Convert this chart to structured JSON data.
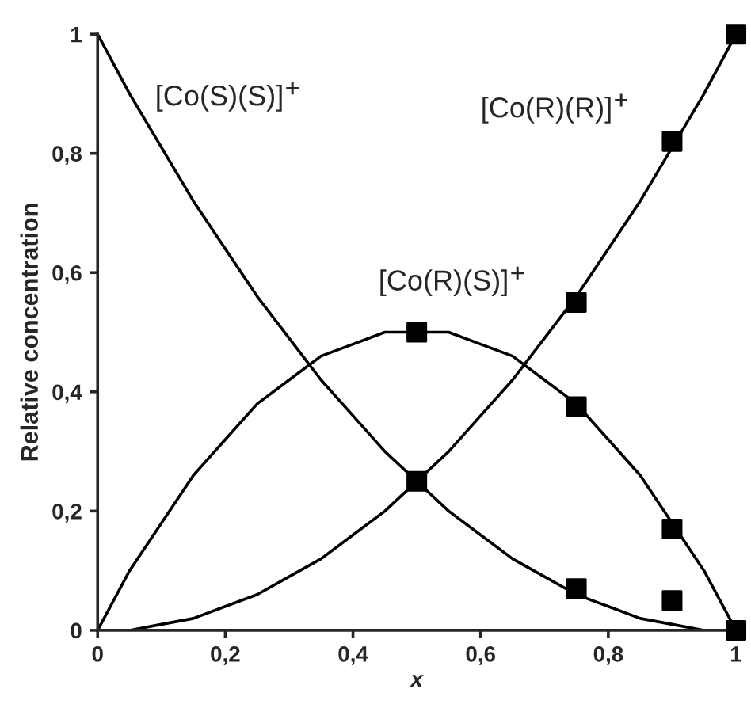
{
  "chart_data": {
    "type": "line",
    "xlabel": "x",
    "ylabel": "Relative concentration",
    "xlim": [
      0,
      1
    ],
    "ylim": [
      0,
      1
    ],
    "xticks": [
      0,
      {
        "value": 0.2,
        "label": "0,2"
      },
      {
        "value": 0.4,
        "label": "0,4"
      },
      {
        "value": 0.6,
        "label": "0,6"
      },
      {
        "value": 0.8,
        "label": "0,8"
      },
      1
    ],
    "yticks": [
      0,
      {
        "value": 0.2,
        "label": "0,2"
      },
      {
        "value": 0.4,
        "label": "0,4"
      },
      {
        "value": 0.6,
        "label": "0,6"
      },
      {
        "value": 0.8,
        "label": "0,8"
      },
      1
    ],
    "grid": false,
    "legend": false,
    "marker": "none",
    "line_style": "solid",
    "series": [
      {
        "name": "[Co(S)(S)]$^{+}$",
        "color": "#000000",
        "x": [
          0,
          0.05,
          0.1,
          0.15,
          0.2,
          0.25,
          0.3,
          0.35,
          0.4,
          0.45,
          0.5,
          0.55,
          0.6,
          0.65,
          0.7,
          0.75,
          0.8,
          0.85,
          0.9,
          0.95,
          1
        ],
        "values": [
          1,
          0.9,
          0.81,
          0.72,
          0.64,
          0.56,
          0.49,
          0.42,
          0.36,
          0.3,
          0.25,
          0.2,
          0.16,
          0.12,
          0.09,
          0.06,
          0.04,
          0.02,
          0.01,
          0,
          0
        ]
      },
      {
        "name": "[Co(R)(R)]$^{+}$",
        "color": "#000000",
        "x": [
          0,
          0.05,
          0.1,
          0.15,
          0.2,
          0.25,
          0.3,
          0.35,
          0.4,
          0.45,
          0.5,
          0.55,
          0.6,
          0.65,
          0.7,
          0.75,
          0.8,
          0.85,
          0.9,
          0.95,
          1
        ],
        "values": [
          0,
          0,
          0.01,
          0.02,
          0.04,
          0.06,
          0.09,
          0.12,
          0.16,
          0.2,
          0.25,
          0.3,
          0.36,
          0.42,
          0.49,
          0.56,
          0.64,
          0.72,
          0.81,
          0.9,
          1
        ]
      },
      {
        "name": "[Co(R)(S)]$^{+}$",
        "color": "#000000",
        "x": [
          0,
          0.05,
          0.1,
          0.15,
          0.2,
          0.25,
          0.3,
          0.35,
          0.4,
          0.45,
          0.5,
          0.55,
          0.6,
          0.65,
          0.7,
          0.75,
          0.8,
          0.85,
          0.9,
          0.95,
          1
        ],
        "values": [
          0,
          0.1,
          0.18,
          0.26,
          0.32,
          0.38,
          0.42,
          0.46,
          0.48,
          0.5,
          0.5,
          0.5,
          0.48,
          0.46,
          0.42,
          0.38,
          0.32,
          0.26,
          0.18,
          0.1,
          0
        ]
      },
      {
        "type": "scatter",
        "marker": "square",
        "color": "#000000",
        "x": [
          0.5,
          0.5,
          0.75,
          0.75,
          0.75,
          0.9,
          0.9,
          0.9,
          1,
          1
        ],
        "values": [
          0.5,
          0.25,
          0.55,
          0.375,
          0.07,
          0.82,
          0.17,
          0.05,
          1,
          0
        ]
      }
    ]
  }
}
